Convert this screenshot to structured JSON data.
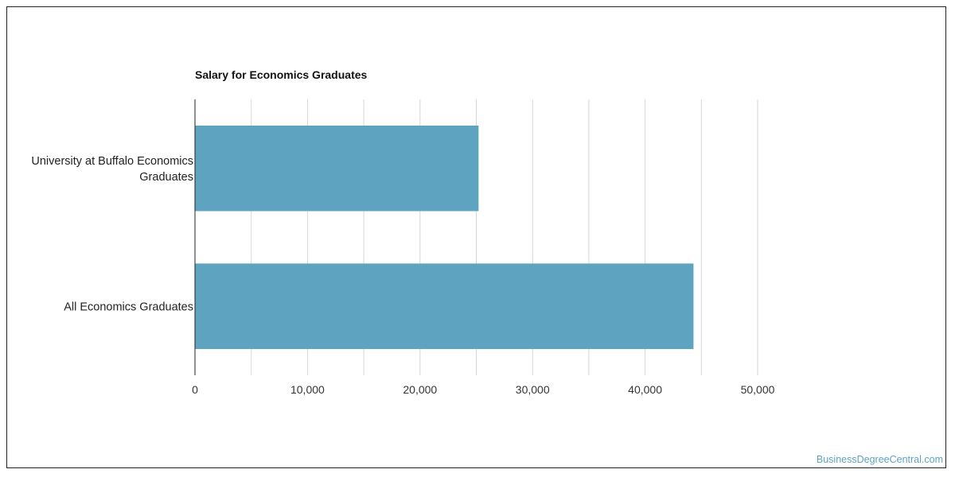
{
  "chart_data": {
    "type": "bar",
    "orientation": "horizontal",
    "title": "Salary for Economics Graduates",
    "categories": [
      [
        "University at Buffalo Economics",
        "Graduates"
      ],
      [
        "All Economics Graduates"
      ]
    ],
    "values": [
      25200,
      44300
    ],
    "xlim": [
      0,
      50000
    ],
    "xticks": [
      0,
      10000,
      20000,
      30000,
      40000,
      50000
    ],
    "xtick_labels": [
      "0",
      "10,000",
      "20,000",
      "30,000",
      "40,000",
      "50,000"
    ],
    "grid": true,
    "bar_color": "#5ea3c0",
    "grid_color": "#d6d6d6"
  },
  "credit": "BusinessDegreeCentral.com"
}
